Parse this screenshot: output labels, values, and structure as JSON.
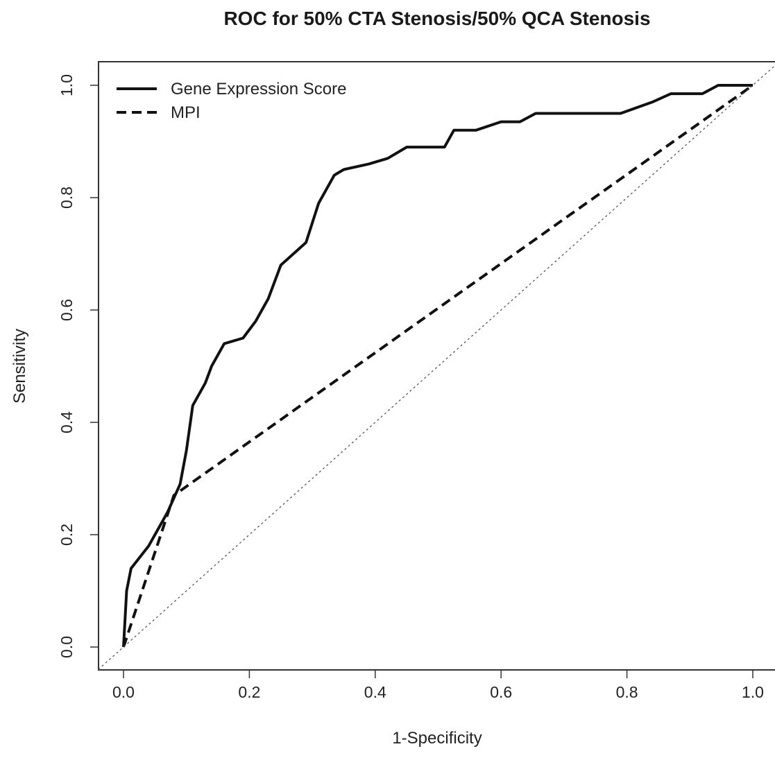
{
  "chart_data": {
    "type": "line",
    "title": "ROC for 50% CTA Stenosis/50% QCA Stenosis",
    "xlabel": "1-Specificity",
    "ylabel": "Sensitivity",
    "xlim": [
      -0.04,
      1.04
    ],
    "ylim": [
      -0.04,
      1.04
    ],
    "x_ticks": [
      "0.0",
      "0.2",
      "0.4",
      "0.6",
      "0.8",
      "1.0"
    ],
    "y_ticks": [
      "0.0",
      "0.2",
      "0.4",
      "0.6",
      "0.8",
      "1.0"
    ],
    "legend_position": "top-left",
    "grid": false,
    "series": [
      {
        "name": "Gene Expression Score",
        "line_style": "solid",
        "color": "#111111",
        "points": [
          [
            0.0,
            0.0
          ],
          [
            0.005,
            0.1
          ],
          [
            0.012,
            0.14
          ],
          [
            0.04,
            0.18
          ],
          [
            0.07,
            0.24
          ],
          [
            0.09,
            0.29
          ],
          [
            0.1,
            0.35
          ],
          [
            0.11,
            0.43
          ],
          [
            0.13,
            0.47
          ],
          [
            0.14,
            0.5
          ],
          [
            0.16,
            0.54
          ],
          [
            0.19,
            0.55
          ],
          [
            0.21,
            0.58
          ],
          [
            0.23,
            0.62
          ],
          [
            0.25,
            0.68
          ],
          [
            0.27,
            0.7
          ],
          [
            0.29,
            0.72
          ],
          [
            0.31,
            0.79
          ],
          [
            0.335,
            0.84
          ],
          [
            0.35,
            0.85
          ],
          [
            0.39,
            0.86
          ],
          [
            0.42,
            0.87
          ],
          [
            0.45,
            0.89
          ],
          [
            0.51,
            0.89
          ],
          [
            0.525,
            0.92
          ],
          [
            0.56,
            0.92
          ],
          [
            0.6,
            0.935
          ],
          [
            0.63,
            0.935
          ],
          [
            0.655,
            0.95
          ],
          [
            0.79,
            0.95
          ],
          [
            0.84,
            0.97
          ],
          [
            0.87,
            0.985
          ],
          [
            0.92,
            0.985
          ],
          [
            0.945,
            1.0
          ],
          [
            1.0,
            1.0
          ]
        ]
      },
      {
        "name": "MPI",
        "line_style": "dashed",
        "color": "#111111",
        "points": [
          [
            0.0,
            0.0
          ],
          [
            0.08,
            0.27
          ],
          [
            1.0,
            1.0
          ]
        ]
      },
      {
        "name": "",
        "line_style": "dotted",
        "color": "#555555",
        "points": [
          [
            -0.04,
            -0.04
          ],
          [
            1.04,
            1.04
          ]
        ]
      }
    ]
  }
}
